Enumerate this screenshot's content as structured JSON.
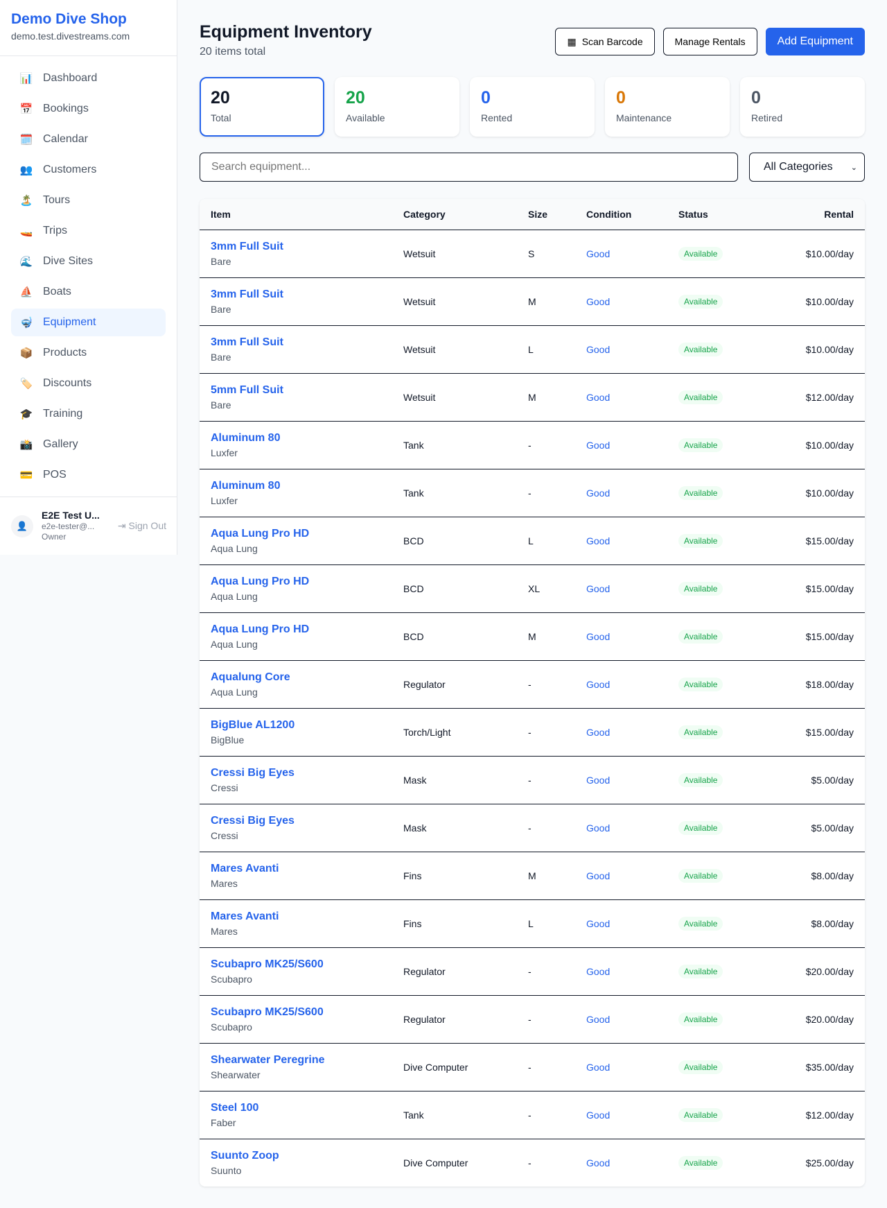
{
  "sidebar": {
    "shop_name": "Demo Dive Shop",
    "domain": "demo.test.divestreams.com",
    "items": [
      {
        "label": "Dashboard",
        "icon": "📊"
      },
      {
        "label": "Bookings",
        "icon": "📅"
      },
      {
        "label": "Calendar",
        "icon": "🗓️"
      },
      {
        "label": "Customers",
        "icon": "👥"
      },
      {
        "label": "Tours",
        "icon": "🏝️"
      },
      {
        "label": "Trips",
        "icon": "🚤"
      },
      {
        "label": "Dive Sites",
        "icon": "🌊"
      },
      {
        "label": "Boats",
        "icon": "⛵"
      },
      {
        "label": "Equipment",
        "icon": "🤿"
      },
      {
        "label": "Products",
        "icon": "📦"
      },
      {
        "label": "Discounts",
        "icon": "🏷️"
      },
      {
        "label": "Training",
        "icon": "🎓"
      },
      {
        "label": "Gallery",
        "icon": "📸"
      },
      {
        "label": "POS",
        "icon": "💳"
      }
    ],
    "active": "Equipment",
    "user": {
      "name": "E2E Test U...",
      "email": "e2e-tester@...",
      "role": "Owner",
      "sign_out": "Sign Out"
    }
  },
  "header": {
    "title": "Equipment Inventory",
    "subtitle": "20 items total",
    "scan_barcode": "Scan Barcode",
    "manage_rentals": "Manage Rentals",
    "add_equipment": "Add Equipment"
  },
  "stats": [
    {
      "value": "20",
      "label": "Total",
      "color": "#111827"
    },
    {
      "value": "20",
      "label": "Available",
      "color": "#16a34a"
    },
    {
      "value": "0",
      "label": "Rented",
      "color": "#2563eb"
    },
    {
      "value": "0",
      "label": "Maintenance",
      "color": "#d97706"
    },
    {
      "value": "0",
      "label": "Retired",
      "color": "#4b5563"
    }
  ],
  "filters": {
    "search_placeholder": "Search equipment...",
    "category": "All Categories"
  },
  "table": {
    "columns": [
      "Item",
      "Category",
      "Size",
      "Condition",
      "Status",
      "Rental"
    ],
    "rows": [
      [
        "3mm Full Suit",
        "Bare",
        "Wetsuit",
        "S",
        "Good",
        "Available",
        "$10.00/day"
      ],
      [
        "3mm Full Suit",
        "Bare",
        "Wetsuit",
        "M",
        "Good",
        "Available",
        "$10.00/day"
      ],
      [
        "3mm Full Suit",
        "Bare",
        "Wetsuit",
        "L",
        "Good",
        "Available",
        "$10.00/day"
      ],
      [
        "5mm Full Suit",
        "Bare",
        "Wetsuit",
        "M",
        "Good",
        "Available",
        "$12.00/day"
      ],
      [
        "Aluminum 80",
        "Luxfer",
        "Tank",
        "-",
        "Good",
        "Available",
        "$10.00/day"
      ],
      [
        "Aluminum 80",
        "Luxfer",
        "Tank",
        "-",
        "Good",
        "Available",
        "$10.00/day"
      ],
      [
        "Aqua Lung Pro HD",
        "Aqua Lung",
        "BCD",
        "L",
        "Good",
        "Available",
        "$15.00/day"
      ],
      [
        "Aqua Lung Pro HD",
        "Aqua Lung",
        "BCD",
        "XL",
        "Good",
        "Available",
        "$15.00/day"
      ],
      [
        "Aqua Lung Pro HD",
        "Aqua Lung",
        "BCD",
        "M",
        "Good",
        "Available",
        "$15.00/day"
      ],
      [
        "Aqualung Core",
        "Aqua Lung",
        "Regulator",
        "-",
        "Good",
        "Available",
        "$18.00/day"
      ],
      [
        "BigBlue AL1200",
        "BigBlue",
        "Torch/Light",
        "-",
        "Good",
        "Available",
        "$15.00/day"
      ],
      [
        "Cressi Big Eyes",
        "Cressi",
        "Mask",
        "-",
        "Good",
        "Available",
        "$5.00/day"
      ],
      [
        "Cressi Big Eyes",
        "Cressi",
        "Mask",
        "-",
        "Good",
        "Available",
        "$5.00/day"
      ],
      [
        "Mares Avanti",
        "Mares",
        "Fins",
        "M",
        "Good",
        "Available",
        "$8.00/day"
      ],
      [
        "Mares Avanti",
        "Mares",
        "Fins",
        "L",
        "Good",
        "Available",
        "$8.00/day"
      ],
      [
        "Scubapro MK25/S600",
        "Scubapro",
        "Regulator",
        "-",
        "Good",
        "Available",
        "$20.00/day"
      ],
      [
        "Scubapro MK25/S600",
        "Scubapro",
        "Regulator",
        "-",
        "Good",
        "Available",
        "$20.00/day"
      ],
      [
        "Shearwater Peregrine",
        "Shearwater",
        "Dive Computer",
        "-",
        "Good",
        "Available",
        "$35.00/day"
      ],
      [
        "Steel 100",
        "Faber",
        "Tank",
        "-",
        "Good",
        "Available",
        "$12.00/day"
      ],
      [
        "Suunto Zoop",
        "Suunto",
        "Dive Computer",
        "-",
        "Good",
        "Available",
        "$25.00/day"
      ]
    ]
  }
}
